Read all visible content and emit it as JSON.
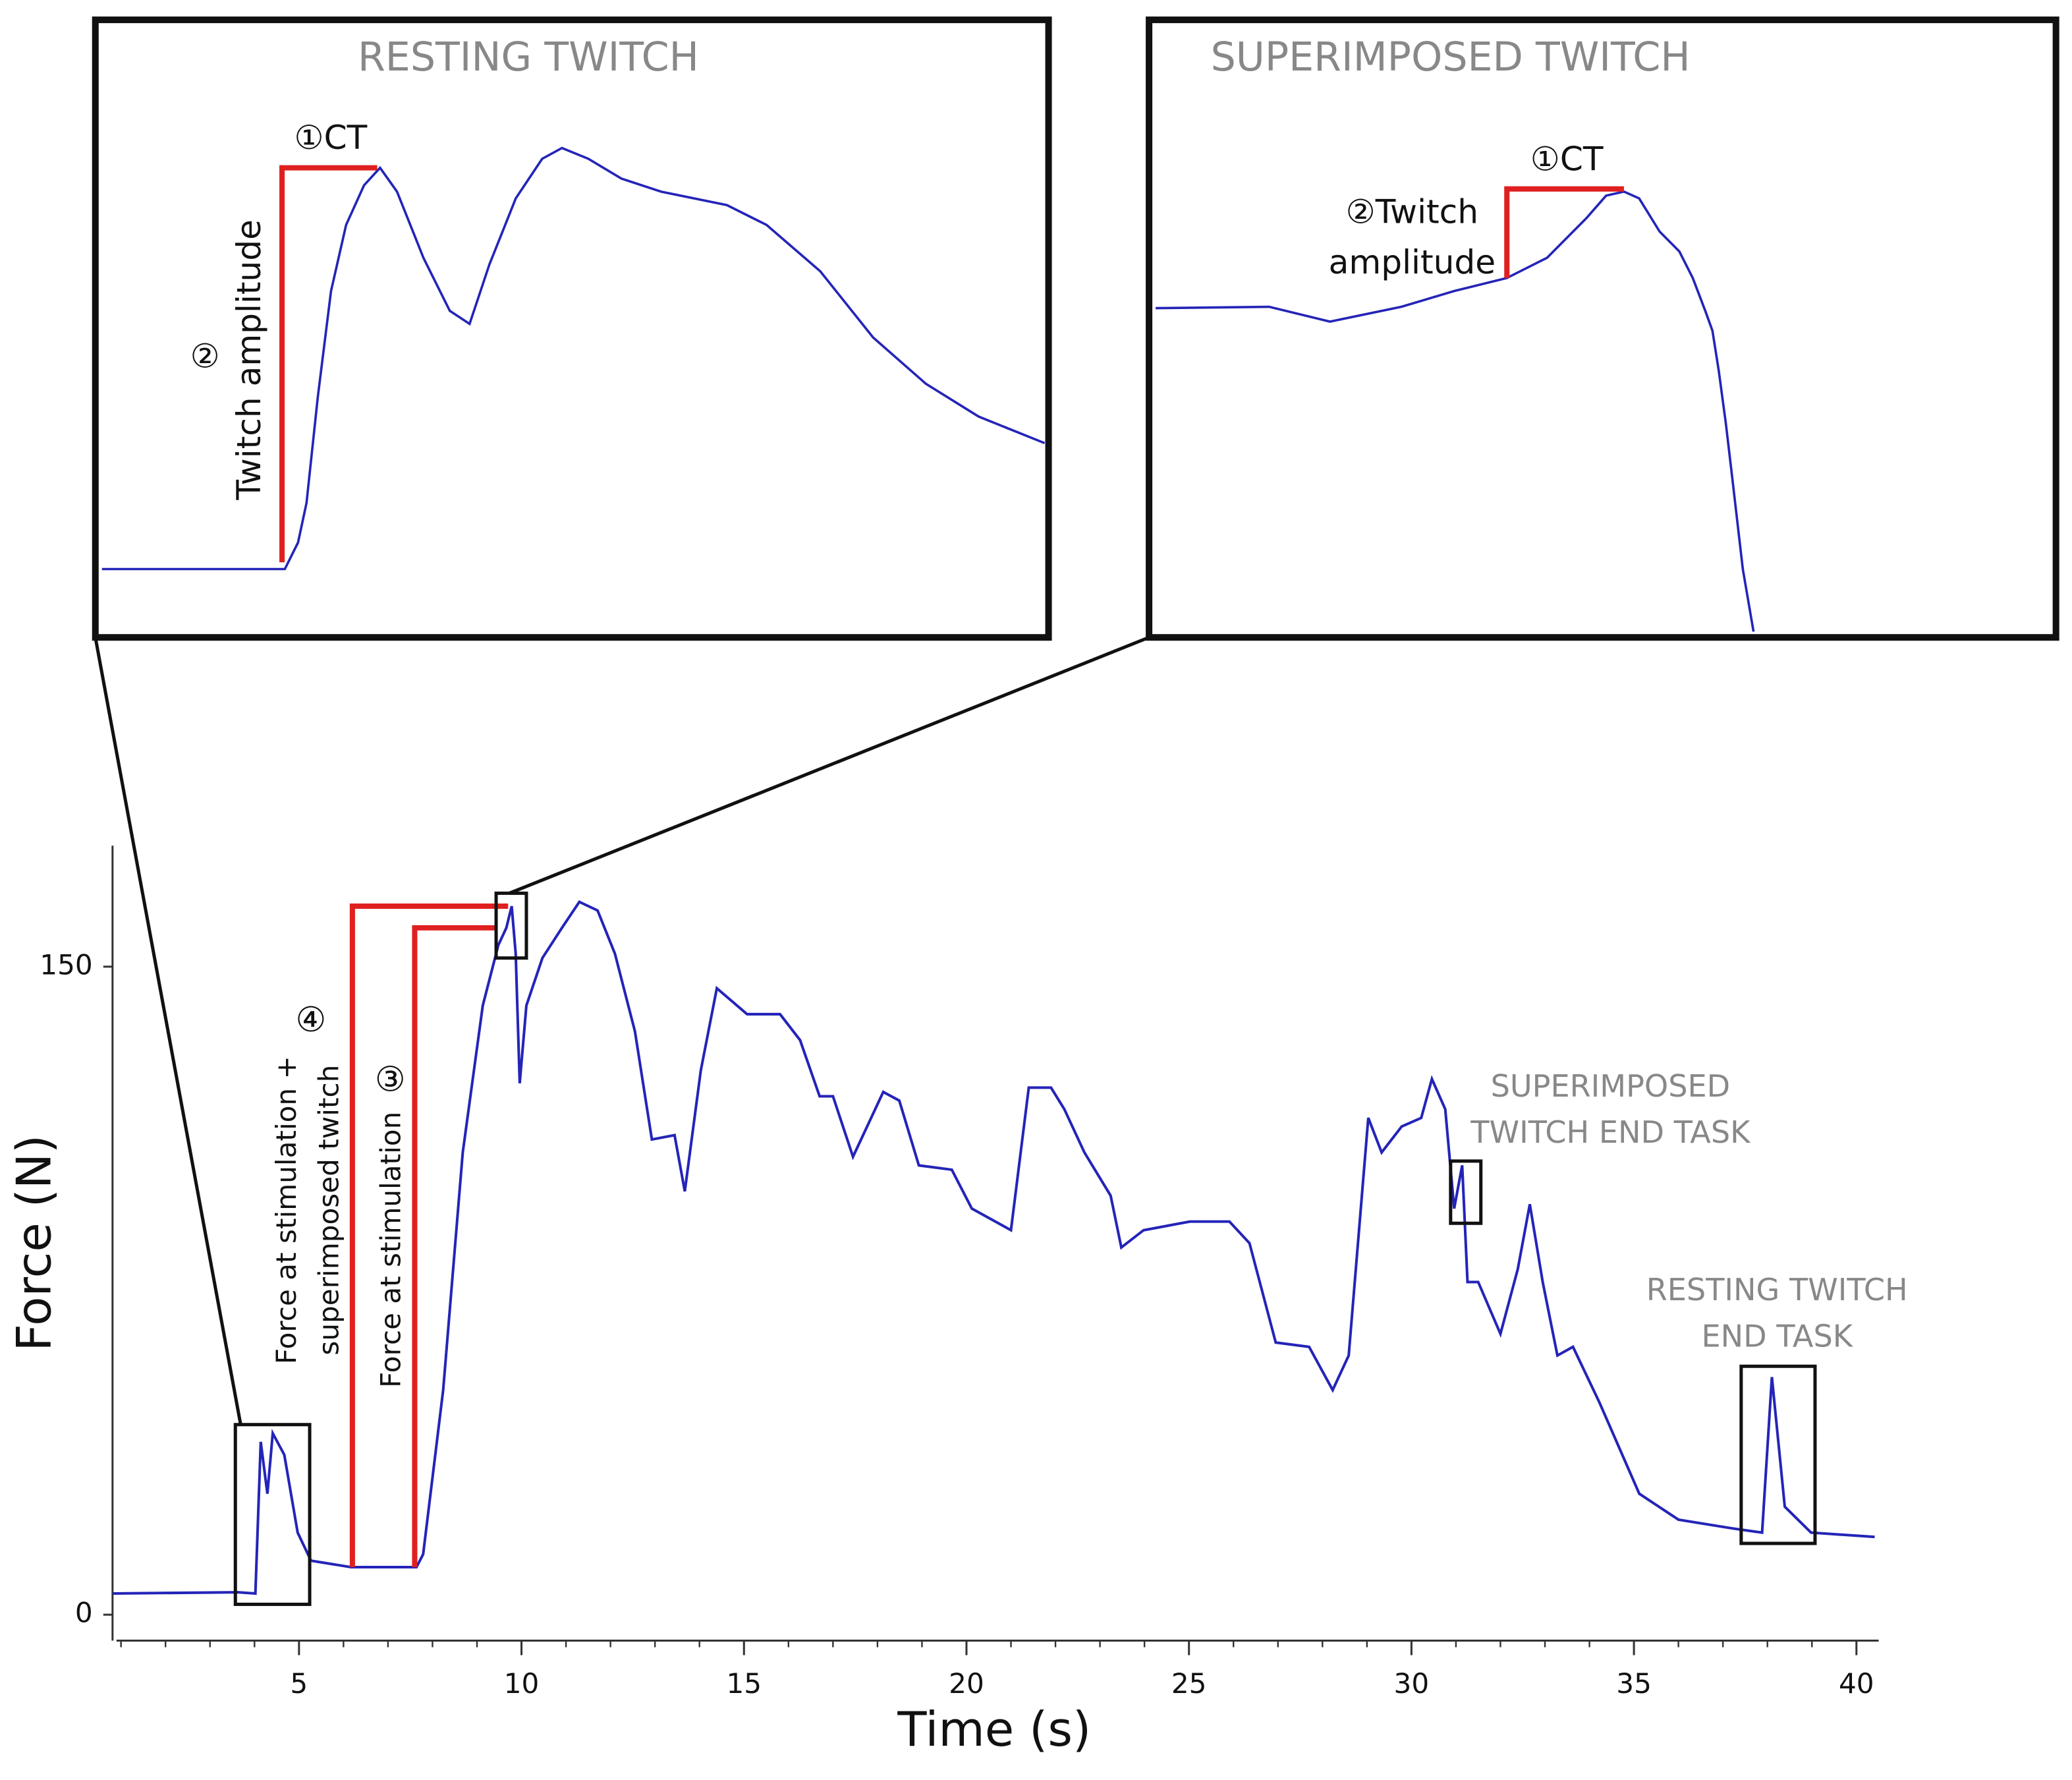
{
  "chart_data": {
    "type": "line",
    "x_label": "Time (s)",
    "y_label": "Force (N)",
    "xlim": [
      1,
      40.5
    ],
    "ylim": [
      -6,
      178
    ],
    "xticks": [
      5,
      10,
      15,
      20,
      25,
      30,
      35,
      40
    ],
    "yticks": [
      0,
      150
    ],
    "xminor_interval": 1,
    "color": "#2424b8",
    "bracket_color": "#e02020",
    "x": [
      0.81,
      3.63,
      4.02,
      4.14,
      4.29,
      4.41,
      4.67,
      4.97,
      5.27,
      6.17,
      7.64,
      7.79,
      8.24,
      8.68,
      9.13,
      9.48,
      9.66,
      9.78,
      9.87,
      9.96,
      10.11,
      10.47,
      10.91,
      11.3,
      11.71,
      12.1,
      12.55,
      12.93,
      13.44,
      13.67,
      14.03,
      14.39,
      15.07,
      15.81,
      16.26,
      16.7,
      17.0,
      17.45,
      18.13,
      18.49,
      18.93,
      19.67,
      20.12,
      21.0,
      21.4,
      21.9,
      22.2,
      22.65,
      23.24,
      23.48,
      23.98,
      25.02,
      25.91,
      26.36,
      26.95,
      27.7,
      28.23,
      28.59,
      29.03,
      29.33,
      29.78,
      30.22,
      30.46,
      30.76,
      30.96,
      31.14,
      31.26,
      31.5,
      32.0,
      32.39,
      32.66,
      32.95,
      33.28,
      33.63,
      34.23,
      35.12,
      36.0,
      37.2,
      37.88,
      38.1,
      38.39,
      38.98,
      40.41
    ],
    "values": [
      4.9,
      5.2,
      4.9,
      40,
      28,
      42,
      37,
      19,
      12.5,
      11,
      11,
      14,
      52,
      107,
      141,
      155,
      159,
      164,
      153,
      123,
      141,
      152,
      159,
      165,
      163,
      153,
      135,
      110,
      111,
      98,
      126,
      145,
      139,
      139,
      133,
      120,
      120,
      106,
      121,
      119,
      104,
      103,
      94,
      89,
      122,
      122,
      117,
      107,
      97,
      85,
      89,
      91,
      91,
      86,
      63,
      62,
      52,
      60,
      115,
      107,
      113,
      115,
      124,
      117,
      94,
      104,
      77,
      77,
      65,
      80,
      95,
      77,
      60,
      62,
      49,
      28,
      22,
      20,
      19,
      55,
      25,
      19,
      18
    ],
    "brackets": [
      {
        "x": 6.2,
        "x_end": 9.7,
        "y_start": 11,
        "y_end": 164,
        "number": "④",
        "lines": [
          "Force at stimulation +",
          "superimposed twitch"
        ]
      },
      {
        "x": 7.6,
        "x_end": 9.4,
        "y_start": 11,
        "y_end": 159,
        "number": "③",
        "lines": [
          "Force at stimulation"
        ]
      }
    ],
    "boxes": [
      {
        "x": [
          3.57,
          5.24
        ],
        "y": [
          2.4,
          44
        ]
      },
      {
        "x": [
          9.43,
          10.11
        ],
        "y": [
          152,
          167
        ]
      },
      {
        "x": [
          30.88,
          31.56
        ],
        "y": [
          90.6,
          105
        ],
        "label": [
          "SUPERIMPOSED",
          "TWITCH END TASK"
        ]
      },
      {
        "x": [
          37.41,
          39.07
        ],
        "y": [
          16.5,
          57.5
        ],
        "label": [
          "RESTING TWITCH",
          "END TASK"
        ]
      }
    ],
    "insets": [
      {
        "title": "RESTING TWITCH",
        "xlim": [
          0,
          100
        ],
        "ylim": [
          -12,
          100
        ],
        "x": [
          0,
          19.4,
          20.8,
          21.7,
          22.9,
          24.3,
          25.9,
          27.8,
          29.5,
          31.3,
          34.1,
          36.9,
          39.0,
          41.1,
          43.9,
          46.7,
          48.8,
          51.6,
          55.1,
          59.3,
          66.3,
          70.5,
          76.2,
          81.8,
          87.4,
          93.0,
          100
        ],
        "values": [
          2.9,
          2.9,
          8.8,
          17.6,
          41.2,
          64.7,
          79.4,
          88.2,
          92.1,
          86.8,
          72.1,
          60.3,
          57.4,
          70.6,
          85.3,
          94.1,
          96.5,
          94.1,
          89.7,
          86.8,
          83.8,
          79.4,
          69.1,
          54.4,
          44.1,
          36.8,
          30.9
        ],
        "bracket": {
          "x": 19.1,
          "x_end": 29.2,
          "y_start": 4.4,
          "y_end": 92.1,
          "labels": [
            "①CT",
            "②",
            "Twitch amplitude"
          ]
        }
      },
      {
        "title": "SUPERIMPOSED TWITCH",
        "xlim": [
          0,
          100
        ],
        "ylim": [
          -12,
          100
        ],
        "x": [
          0,
          12.7,
          19.5,
          27.5,
          33.4,
          39.3,
          43.8,
          48.2,
          50.4,
          52.4,
          54.1,
          56.4,
          58.6,
          60.1,
          61.5,
          62.3,
          63.0,
          63.8,
          64.5,
          65.7,
          66.9
        ],
        "values": [
          60.9,
          61.2,
          57.9,
          61.2,
          64.7,
          67.6,
          72.1,
          80.9,
          85.9,
          86.8,
          85.3,
          77.9,
          73.5,
          67.6,
          60.3,
          55.9,
          47.1,
          35.3,
          23.5,
          2.9,
          -11
        ],
        "bracket": {
          "x": 39.3,
          "x_end": 52.4,
          "y_start": 67.6,
          "y_end": 87.4,
          "labels": [
            "①CT",
            "②Twitch",
            "amplitude"
          ]
        }
      }
    ]
  }
}
